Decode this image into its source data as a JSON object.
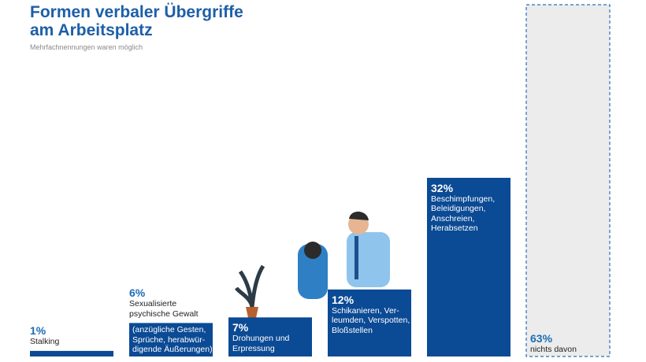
{
  "chart_data": {
    "type": "bar",
    "title": "Formen verbaler Übergriffe\nam Arbeitsplatz",
    "subtitle": "Mehrfachnennungen waren möglich",
    "categories": [
      "Stalking",
      "Sexualisierte\npsychische Gewalt",
      "Drohungen und\nErpressung",
      "Schikanieren, Ver-\nleumden, Verspotten,\nBloßstellen",
      "Beschimpfungen,\nBeleidigungen,\nAnschreien,\nHerabsetzen",
      "nichts davon"
    ],
    "category_notes": [
      null,
      "(anzügliche Gesten,\nSprüche, herabwür-\ndigende Äußerungen)",
      null,
      null,
      null,
      null
    ],
    "values": [
      1,
      6,
      7,
      12,
      32,
      63
    ],
    "value_labels": [
      "1%",
      "6%",
      "7%",
      "12%",
      "32%",
      "63%"
    ],
    "colors": [
      "#0b4a94",
      "#0b4a94",
      "#0b4a94",
      "#0b4a94",
      "#0b4a94",
      "#ececec"
    ],
    "outline_dashed": [
      false,
      false,
      false,
      false,
      false,
      true
    ],
    "ylim": [
      0,
      63
    ]
  }
}
